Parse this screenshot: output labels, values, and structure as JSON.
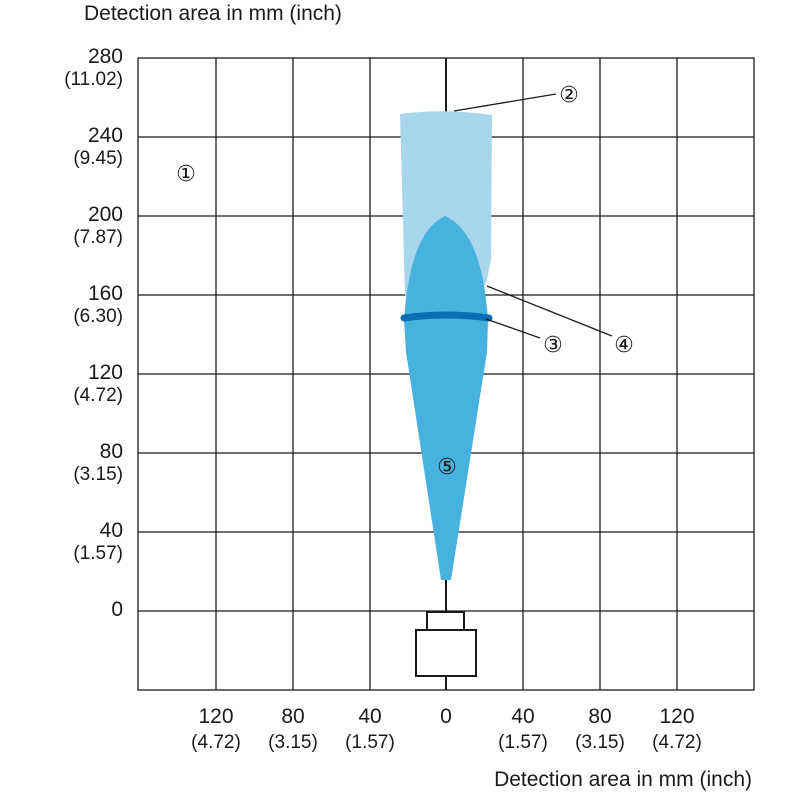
{
  "y_axis": {
    "title": "Detection area in mm (inch)",
    "ticks": [
      {
        "mm": "280",
        "inch": "(11.02)"
      },
      {
        "mm": "240",
        "inch": "(9.45)"
      },
      {
        "mm": "200",
        "inch": "(7.87)"
      },
      {
        "mm": "160",
        "inch": "(6.30)"
      },
      {
        "mm": "120",
        "inch": "(4.72)"
      },
      {
        "mm": "80",
        "inch": "(3.15)"
      },
      {
        "mm": "40",
        "inch": "(1.57)"
      },
      {
        "mm": "0",
        "inch": ""
      }
    ]
  },
  "x_axis": {
    "title": "Detection area in mm (inch)",
    "ticks": [
      {
        "mm": "120",
        "inch": "(4.72)"
      },
      {
        "mm": "80",
        "inch": "(3.15)"
      },
      {
        "mm": "40",
        "inch": "(1.57)"
      },
      {
        "mm": "0",
        "inch": ""
      },
      {
        "mm": "40",
        "inch": "(1.57)"
      },
      {
        "mm": "80",
        "inch": "(3.15)"
      },
      {
        "mm": "120",
        "inch": "(4.72)"
      }
    ]
  },
  "callouts": [
    "①",
    "②",
    "③",
    "④",
    "⑤"
  ],
  "colors": {
    "light_area": "#a8d6ec",
    "main_area": "#47b2de",
    "focus_band": "#0a6db5",
    "grid": "#1a1a1a"
  }
}
